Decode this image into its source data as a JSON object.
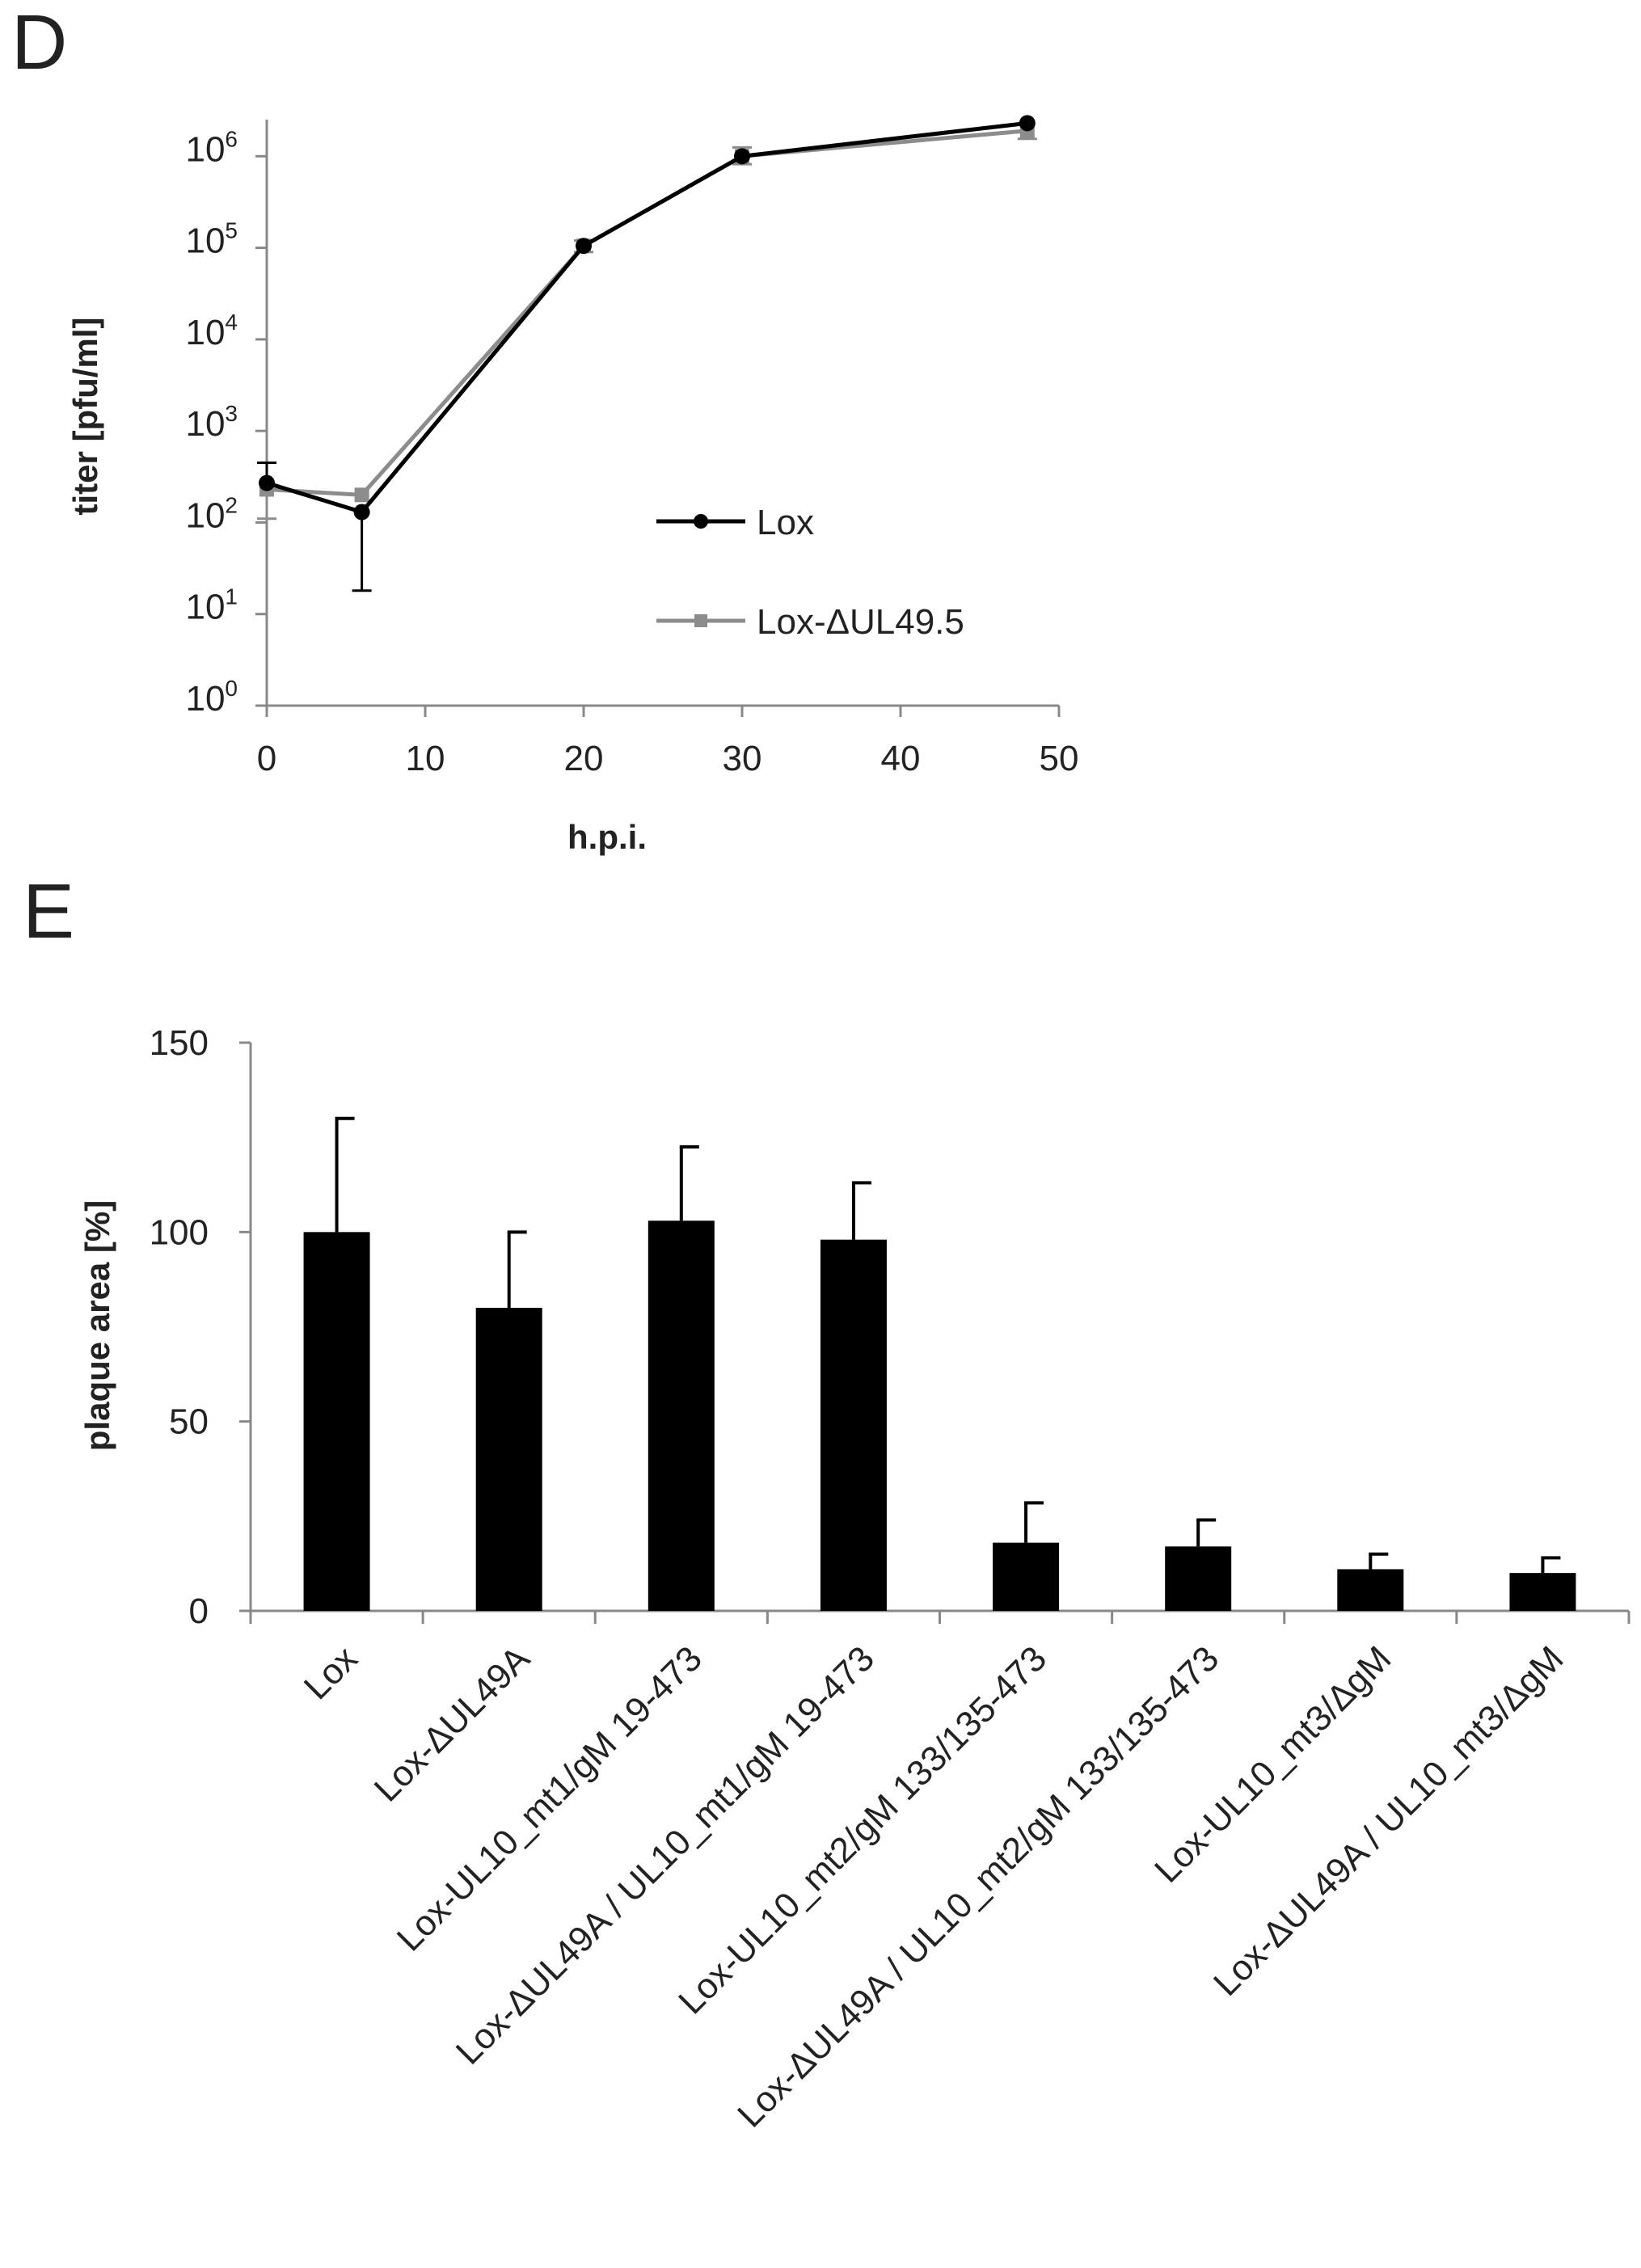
{
  "panels": {
    "d": {
      "letter": "D"
    },
    "e": {
      "letter": "E"
    }
  },
  "chart_data": [
    {
      "panel": "D",
      "type": "line",
      "title": "",
      "xlabel": "h.p.i.",
      "ylabel": "titer [pfu/ml]",
      "yscale": "log10",
      "xlim": [
        0,
        50
      ],
      "ylim_log10": [
        0,
        6.4
      ],
      "xticks": [
        0,
        10,
        20,
        30,
        40,
        50
      ],
      "yticks": [
        {
          "base": "10",
          "exp": "0"
        },
        {
          "base": "10",
          "exp": "1"
        },
        {
          "base": "10",
          "exp": "2"
        },
        {
          "base": "10",
          "exp": "3"
        },
        {
          "base": "10",
          "exp": "4"
        },
        {
          "base": "10",
          "exp": "5"
        },
        {
          "base": "10",
          "exp": "6"
        }
      ],
      "legend_position": "center-right",
      "series": [
        {
          "name": "Lox",
          "color": "#000000",
          "marker": "circle",
          "x": [
            0,
            6,
            20,
            30,
            48
          ],
          "y": [
            270,
            130,
            105000,
            1000000,
            2300000
          ],
          "err_low": [
            null,
            18,
            null,
            null,
            null
          ],
          "err_high": [
            450,
            null,
            null,
            null,
            null
          ]
        },
        {
          "name": "Lox-ΔUL49.5",
          "color": "#8c8c8c",
          "marker": "square",
          "x": [
            0,
            6,
            20,
            30,
            48
          ],
          "y": [
            230,
            200,
            105000,
            1000000,
            1900000
          ],
          "err_low": [
            110,
            null,
            90000,
            820000,
            1550000
          ],
          "err_high": [
            null,
            null,
            120000,
            1250000,
            null
          ]
        }
      ]
    },
    {
      "panel": "E",
      "type": "bar",
      "title": "",
      "xlabel": "",
      "ylabel": "plaque area [%]",
      "ylim": [
        0,
        150
      ],
      "yticks": [
        0,
        50,
        100,
        150
      ],
      "bar_color": "#000000",
      "categories": [
        "Lox",
        "Lox-ΔUL49A",
        "Lox-UL10_mt1/gM 19-473",
        "Lox-ΔUL49A / UL10_mt1/gM 19-473",
        "Lox-UL10_mt2/gM 133/135-473",
        "Lox-ΔUL49A / UL10_mt2/gM 133/135-473",
        "Lox-UL10_mt3/ΔgM",
        "Lox-ΔUL49A / UL10_mt3/ΔgM"
      ],
      "values": [
        100,
        80,
        103,
        98,
        18,
        17,
        11,
        10
      ],
      "errors": [
        30,
        20,
        19.5,
        15,
        10.5,
        7,
        4,
        4
      ]
    }
  ]
}
